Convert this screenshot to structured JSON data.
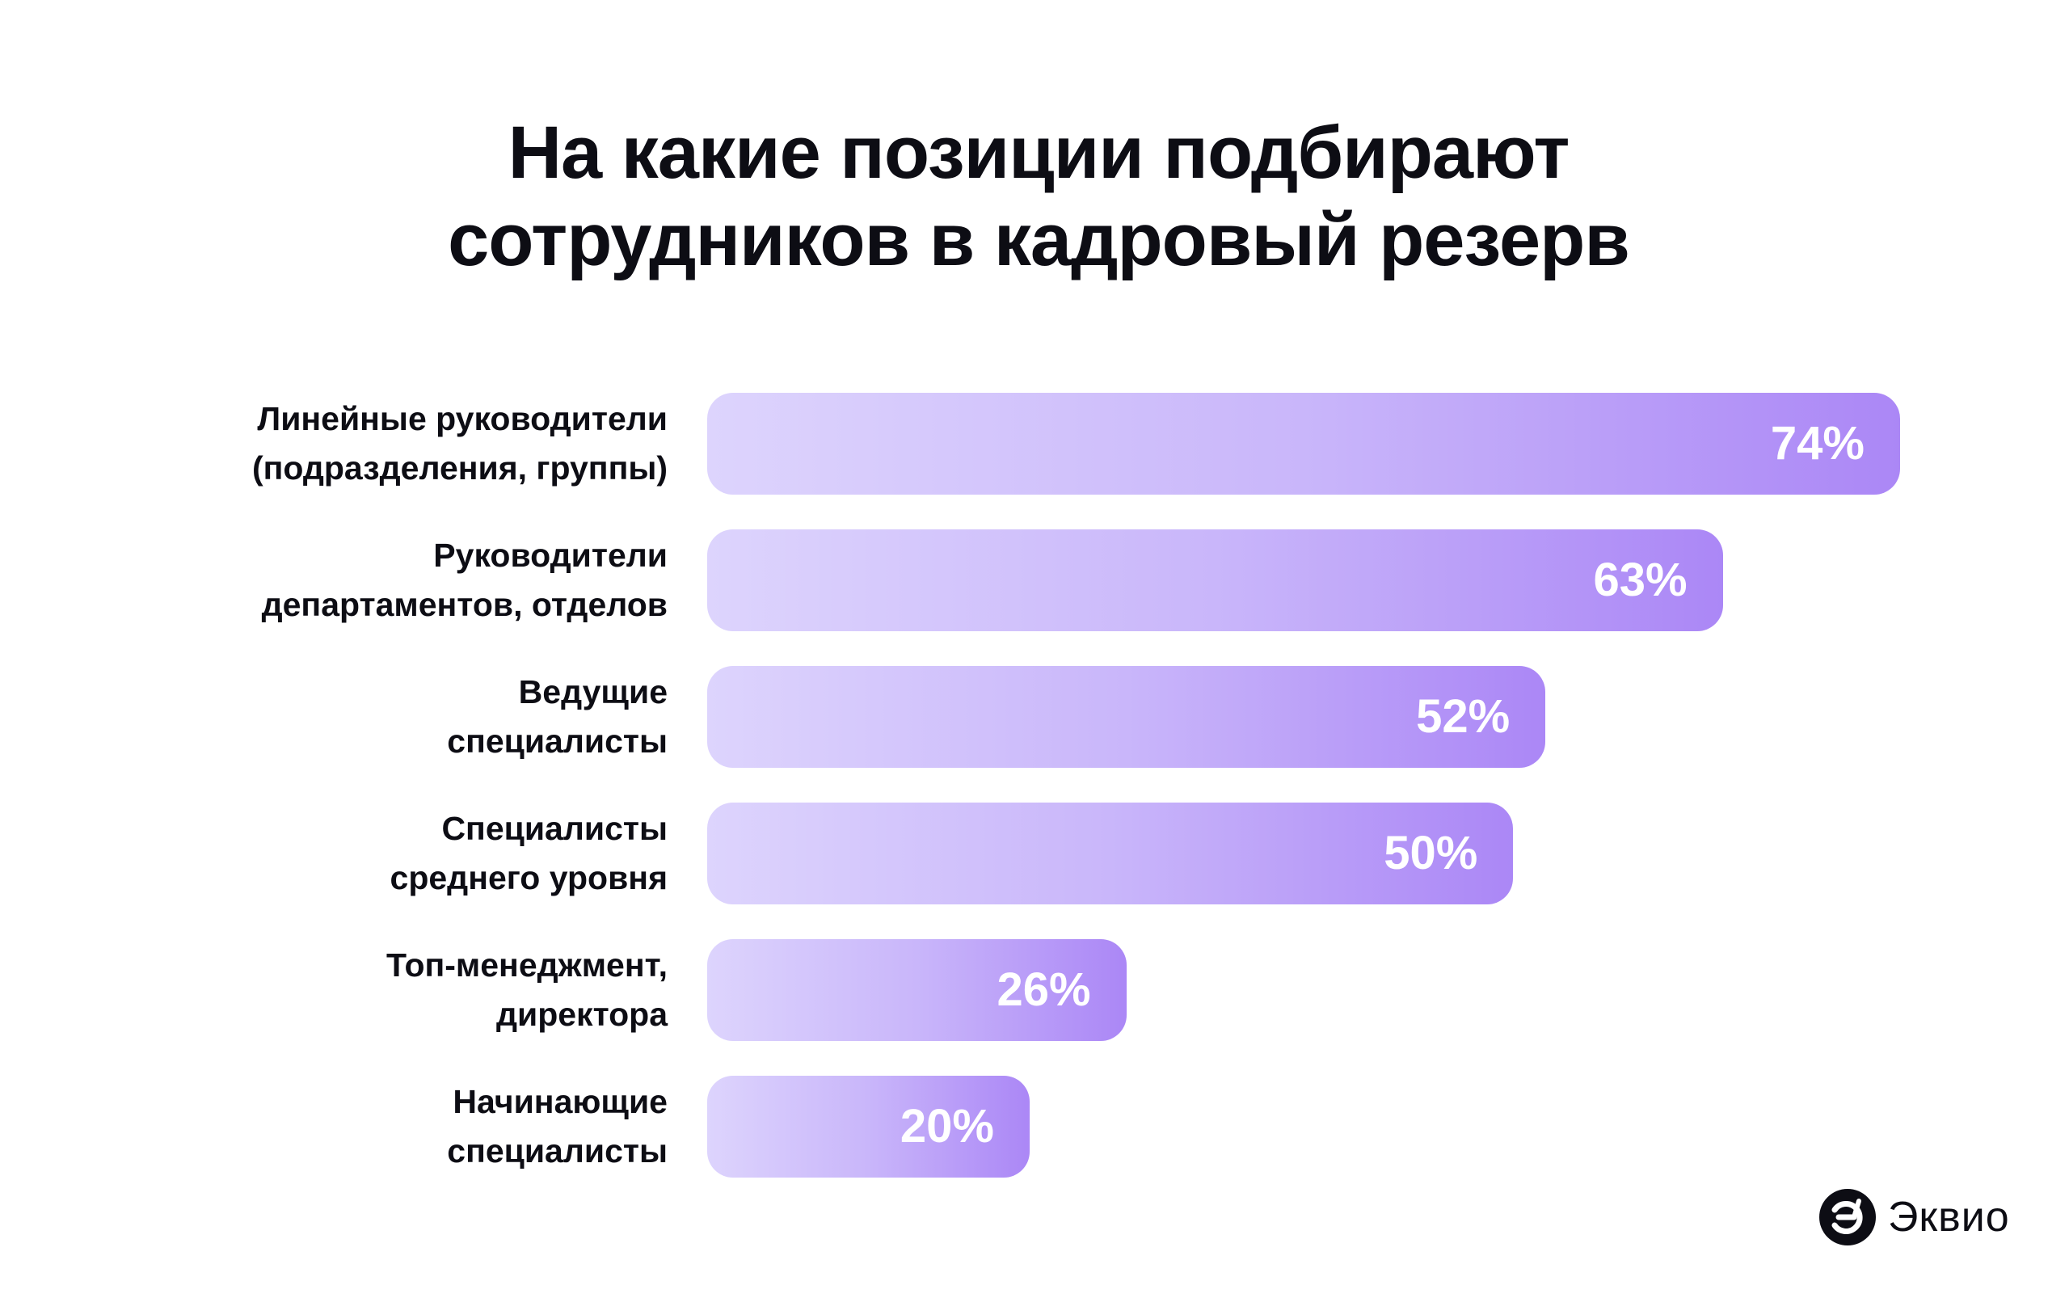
{
  "chart_data": {
    "type": "bar",
    "orientation": "horizontal",
    "title": [
      "На какие позиции подбирают",
      "сотрудников в кадровый резерв"
    ],
    "categories": [
      [
        "Линейные руководители",
        "(подразделения, группы)"
      ],
      [
        "Руководители",
        "департаментов, отделов"
      ],
      [
        "Ведущие",
        "специалисты"
      ],
      [
        "Специалисты",
        "среднего уровня"
      ],
      [
        "Топ-менеджмент,",
        "директора"
      ],
      [
        "Начинающие",
        "специалисты"
      ]
    ],
    "values": [
      74,
      63,
      52,
      50,
      26,
      20
    ],
    "value_labels": [
      "74%",
      "63%",
      "52%",
      "50%",
      "26%",
      "20%"
    ],
    "unit": "%",
    "grid": false,
    "colors": {
      "bar_start": "#ddd4fd",
      "bar_end": "#ab87f6",
      "value_text": "#ffffff"
    }
  },
  "brand": {
    "name": "Эквио",
    "color": "#0d0d14"
  }
}
